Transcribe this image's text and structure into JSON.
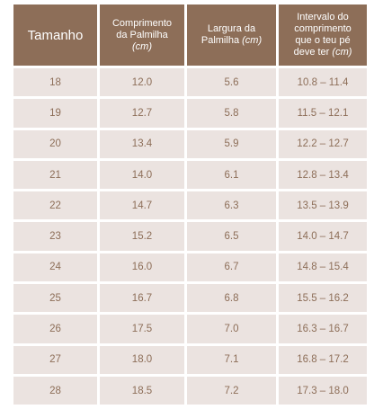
{
  "headers": {
    "size": "Tamanho",
    "length_line1": "Comprimento",
    "length_line2": "da Palmilha",
    "length_unit": "(cm)",
    "width_line1": "Largura da",
    "width_line2": "Palmilha",
    "width_unit": "(cm)",
    "range_line1": "Intervalo do",
    "range_line2": "comprimento",
    "range_line3": "que o teu pé",
    "range_line4": "deve ter",
    "range_unit": "(cm)"
  },
  "rows": [
    {
      "size": "18",
      "length": "12.0",
      "width": "5.6",
      "range": "10.8 – 11.4"
    },
    {
      "size": "19",
      "length": "12.7",
      "width": "5.8",
      "range": "11.5 – 12.1"
    },
    {
      "size": "20",
      "length": "13.4",
      "width": "5.9",
      "range": "12.2 – 12.7"
    },
    {
      "size": "21",
      "length": "14.0",
      "width": "6.1",
      "range": "12.8 – 13.4"
    },
    {
      "size": "22",
      "length": "14.7",
      "width": "6.3",
      "range": "13.5 – 13.9"
    },
    {
      "size": "23",
      "length": "15.2",
      "width": "6.5",
      "range": "14.0 – 14.7"
    },
    {
      "size": "24",
      "length": "16.0",
      "width": "6.7",
      "range": "14.8 – 15.4"
    },
    {
      "size": "25",
      "length": "16.7",
      "width": "6.8",
      "range": "15.5 – 16.2"
    },
    {
      "size": "26",
      "length": "17.5",
      "width": "7.0",
      "range": "16.3 – 16.7"
    },
    {
      "size": "27",
      "length": "18.0",
      "width": "7.1",
      "range": "16.8 – 17.2"
    },
    {
      "size": "28",
      "length": "18.5",
      "width": "7.2",
      "range": "17.3 – 18.0"
    }
  ],
  "colors": {
    "header_bg": "#8d6e58",
    "cell_bg": "#ebe3e0",
    "cell_text": "#8d6e58"
  }
}
